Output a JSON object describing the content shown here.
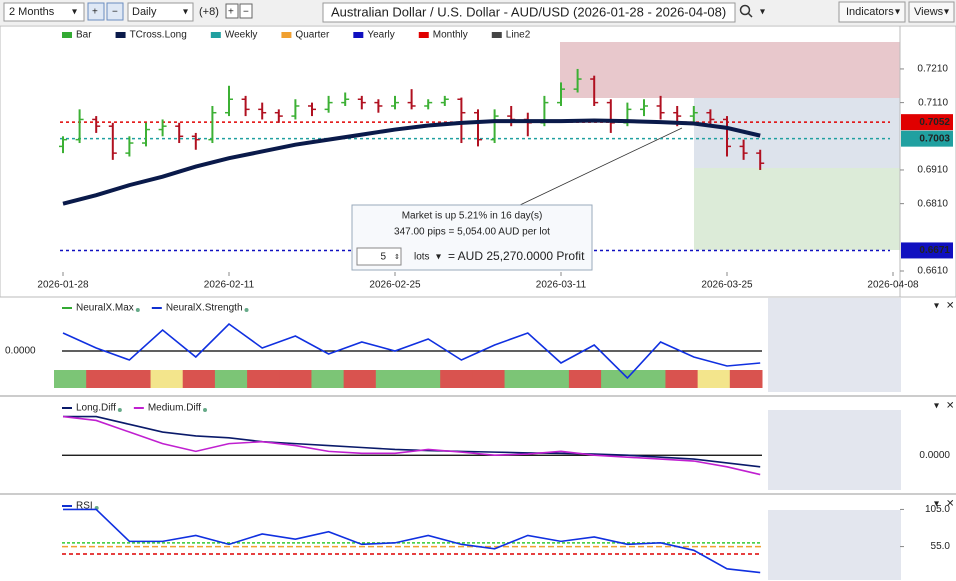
{
  "toolbar": {
    "range": "2 Months",
    "interval": "Daily",
    "offset": "(+8)",
    "title": "Australian Dollar / U.S. Dollar - AUD/USD (2026-01-28 - 2026-04-08)",
    "indicators": "Indicators",
    "views": "Views"
  },
  "main": {
    "legend": [
      {
        "name": "Bar",
        "color": "#3a3"
      },
      {
        "name": "TCross.Long",
        "color": "#0a1a4a"
      },
      {
        "name": "Weekly",
        "color": "#20a0a0"
      },
      {
        "name": "Quarter",
        "color": "#f0a030"
      },
      {
        "name": "Yearly",
        "color": "#1010c0"
      },
      {
        "name": "Monthly",
        "color": "#e00000"
      },
      {
        "name": "Line2",
        "color": "#444"
      }
    ],
    "ylim": [
      0.6607,
      0.729
    ],
    "price_ticks": [
      {
        "value": 0.721,
        "label": "0.7210"
      },
      {
        "value": 0.711,
        "label": "0.7110"
      },
      {
        "value": 0.691,
        "label": "0.6910"
      },
      {
        "value": 0.681,
        "label": "0.6810"
      },
      {
        "value": 0.661,
        "label": "0.6610"
      }
    ],
    "levels": [
      {
        "value": 0.7052,
        "color": "#e00000"
      },
      {
        "value": 0.7003,
        "color": "#20a0a0"
      },
      {
        "value": 0.6671,
        "color": "#1010c0"
      }
    ],
    "dates": [
      "2026-01-28",
      "2026-02-11",
      "2026-02-25",
      "2026-03-11",
      "2026-03-25",
      "2026-04-08"
    ],
    "up_color": "#3cb034",
    "down_color": "#b01020",
    "bars": [
      [
        0.698,
        0.701,
        0.696,
        0.7
      ],
      [
        0.7,
        0.709,
        0.699,
        0.706
      ],
      [
        0.706,
        0.707,
        0.702,
        0.704
      ],
      [
        0.704,
        0.705,
        0.694,
        0.696
      ],
      [
        0.696,
        0.701,
        0.695,
        0.699
      ],
      [
        0.699,
        0.705,
        0.698,
        0.703
      ],
      [
        0.703,
        0.706,
        0.701,
        0.704
      ],
      [
        0.704,
        0.705,
        0.699,
        0.701
      ],
      [
        0.701,
        0.702,
        0.697,
        0.7
      ],
      [
        0.7,
        0.71,
        0.699,
        0.708
      ],
      [
        0.708,
        0.716,
        0.707,
        0.712
      ],
      [
        0.712,
        0.713,
        0.707,
        0.709
      ],
      [
        0.709,
        0.711,
        0.706,
        0.708
      ],
      [
        0.708,
        0.709,
        0.705,
        0.707
      ],
      [
        0.707,
        0.712,
        0.706,
        0.71
      ],
      [
        0.71,
        0.711,
        0.707,
        0.709
      ],
      [
        0.709,
        0.713,
        0.708,
        0.711
      ],
      [
        0.711,
        0.714,
        0.71,
        0.712
      ],
      [
        0.712,
        0.713,
        0.709,
        0.711
      ],
      [
        0.711,
        0.712,
        0.708,
        0.71
      ],
      [
        0.71,
        0.713,
        0.709,
        0.711
      ],
      [
        0.711,
        0.715,
        0.709,
        0.71
      ],
      [
        0.71,
        0.712,
        0.709,
        0.711
      ],
      [
        0.711,
        0.713,
        0.71,
        0.712
      ],
      [
        0.712,
        0.7125,
        0.699,
        0.708
      ],
      [
        0.708,
        0.709,
        0.698,
        0.7
      ],
      [
        0.7,
        0.709,
        0.699,
        0.707
      ],
      [
        0.707,
        0.71,
        0.704,
        0.706
      ],
      [
        0.706,
        0.708,
        0.701,
        0.705
      ],
      [
        0.705,
        0.713,
        0.704,
        0.711
      ],
      [
        0.711,
        0.717,
        0.71,
        0.715
      ],
      [
        0.715,
        0.721,
        0.714,
        0.718
      ],
      [
        0.718,
        0.719,
        0.71,
        0.711
      ],
      [
        0.711,
        0.712,
        0.702,
        0.705
      ],
      [
        0.705,
        0.711,
        0.704,
        0.709
      ],
      [
        0.709,
        0.712,
        0.707,
        0.71
      ],
      [
        0.71,
        0.713,
        0.706,
        0.708
      ],
      [
        0.708,
        0.71,
        0.704,
        0.707
      ],
      [
        0.707,
        0.71,
        0.705,
        0.708
      ],
      [
        0.708,
        0.709,
        0.704,
        0.706
      ],
      [
        0.706,
        0.707,
        0.695,
        0.698
      ],
      [
        0.698,
        0.7,
        0.694,
        0.696
      ],
      [
        0.696,
        0.697,
        0.691,
        0.693
      ]
    ],
    "tcross": [
      0.681,
      0.6835,
      0.6865,
      0.689,
      0.692,
      0.6945,
      0.6965,
      0.6985,
      0.7,
      0.7015,
      0.703,
      0.7042,
      0.705,
      0.7055,
      0.7055,
      0.7055,
      0.7057,
      0.7055,
      0.7052,
      0.7048,
      0.7035,
      0.7012
    ]
  },
  "info_box": {
    "line1": "Market is up 5.21% in 16 day(s)",
    "line2": "347.00 pips = 5,054.00 AUD per lot",
    "lots_value": 5,
    "lots_label": "lots",
    "profit": "= AUD 25,270.0000 Profit"
  },
  "panels": [
    {
      "legend": [
        {
          "name": "NeuralX.Max",
          "color": "#3a3"
        },
        {
          "name": "NeuralX.Strength",
          "color": "#1030d0"
        }
      ],
      "ylim": [
        -1.2,
        1.2
      ],
      "ticks": [
        {
          "value": 0,
          "label": "0.0000"
        }
      ],
      "series": [
        {
          "color": "#1030e0",
          "values": [
            0.6,
            0.1,
            -0.3,
            0.7,
            -0.2,
            0.9,
            0.1,
            0.5,
            -0.1,
            0.3,
            0.0,
            0.4,
            -0.3,
            0.2,
            0.6,
            -0.4,
            0.2,
            -0.9,
            0.3,
            -0.2,
            -0.5,
            -0.4
          ]
        }
      ],
      "strip": [
        "#7cc576",
        "#d9534f",
        "#d9534f",
        "#f3e58c",
        "#d9534f",
        "#7cc576",
        "#d9534f",
        "#d9534f",
        "#7cc576",
        "#d9534f",
        "#7cc576",
        "#7cc576",
        "#d9534f",
        "#d9534f",
        "#7cc576",
        "#7cc576",
        "#d9534f",
        "#7cc576",
        "#7cc576",
        "#d9534f",
        "#f3e58c",
        "#d9534f"
      ]
    },
    {
      "legend": [
        {
          "name": "Long.Diff",
          "color": "#0a1a6a"
        },
        {
          "name": "Medium.Diff",
          "color": "#c020d0"
        }
      ],
      "ylim": [
        -0.9,
        1.3
      ],
      "ticks": [
        {
          "value": 0,
          "label": "0.0000"
        }
      ],
      "series": [
        {
          "color": "#0a1a6a",
          "values": [
            1.0,
            1.0,
            0.8,
            0.6,
            0.5,
            0.45,
            0.35,
            0.3,
            0.25,
            0.2,
            0.15,
            0.12,
            0.1,
            0.08,
            0.06,
            0.05,
            0.03,
            0.0,
            -0.05,
            -0.1,
            -0.2,
            -0.3
          ]
        },
        {
          "color": "#c020d0",
          "values": [
            1.0,
            0.9,
            0.6,
            0.3,
            0.1,
            0.3,
            0.35,
            0.25,
            0.1,
            0.05,
            0.05,
            0.15,
            0.08,
            0.0,
            0.03,
            0.1,
            0.0,
            -0.05,
            -0.1,
            -0.15,
            -0.3,
            -0.5
          ]
        }
      ]
    },
    {
      "legend": [
        {
          "name": "RSI",
          "color": "#1030d0"
        }
      ],
      "ylim": [
        10,
        115
      ],
      "ticks": [
        {
          "value": 105,
          "label": "105.0"
        },
        {
          "value": 55,
          "label": "55.0"
        }
      ],
      "series": [
        {
          "color": "#1030e0",
          "values": [
            105,
            105,
            62,
            62,
            70,
            58,
            72,
            65,
            75,
            58,
            60,
            70,
            58,
            52,
            70,
            62,
            68,
            58,
            60,
            50,
            25,
            20
          ]
        }
      ]
    }
  ]
}
